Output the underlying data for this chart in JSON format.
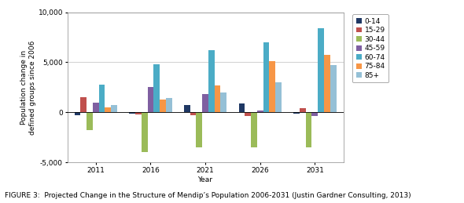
{
  "years": [
    "2011",
    "2016",
    "2021",
    "2026",
    "2031"
  ],
  "age_groups": [
    "0-14",
    "15-29",
    "30-44",
    "45-59",
    "60-74",
    "75-84",
    "85+"
  ],
  "colors": [
    "#1F3864",
    "#C0504D",
    "#9BBB59",
    "#7F5FA1",
    "#4BACC6",
    "#F79646",
    "#95C0D6"
  ],
  "data": {
    "0-14": [
      -300,
      -100,
      700,
      900,
      -100
    ],
    "15-29": [
      1500,
      -200,
      -300,
      -400,
      400
    ],
    "30-44": [
      -1800,
      -4000,
      -3500,
      -3500,
      -3500
    ],
    "45-59": [
      1000,
      2500,
      1800,
      200,
      -400
    ],
    "60-74": [
      2800,
      4800,
      6200,
      7000,
      8400
    ],
    "75-84": [
      500,
      1300,
      2700,
      5100,
      5700
    ],
    "85+": [
      700,
      1400,
      2000,
      3000,
      4700
    ]
  },
  "ylim": [
    -5000,
    10000
  ],
  "yticks": [
    -5000,
    0,
    5000,
    10000
  ],
  "xlabel": "Year",
  "ylabel": "Population change in\ndefined groups since 2006",
  "caption": "FIGURE 3:  Projected Change in the Structure of Mendip’s Population 2006-2031 (Justin Gardner Consulting, 2013)",
  "bg_color": "#FFFFFF",
  "plot_bg": "#FFFFFF",
  "grid_color": "#BEBEBE",
  "axis_fontsize": 6.5,
  "tick_fontsize": 6.5,
  "legend_fontsize": 6.5,
  "caption_fontsize": 6.5
}
